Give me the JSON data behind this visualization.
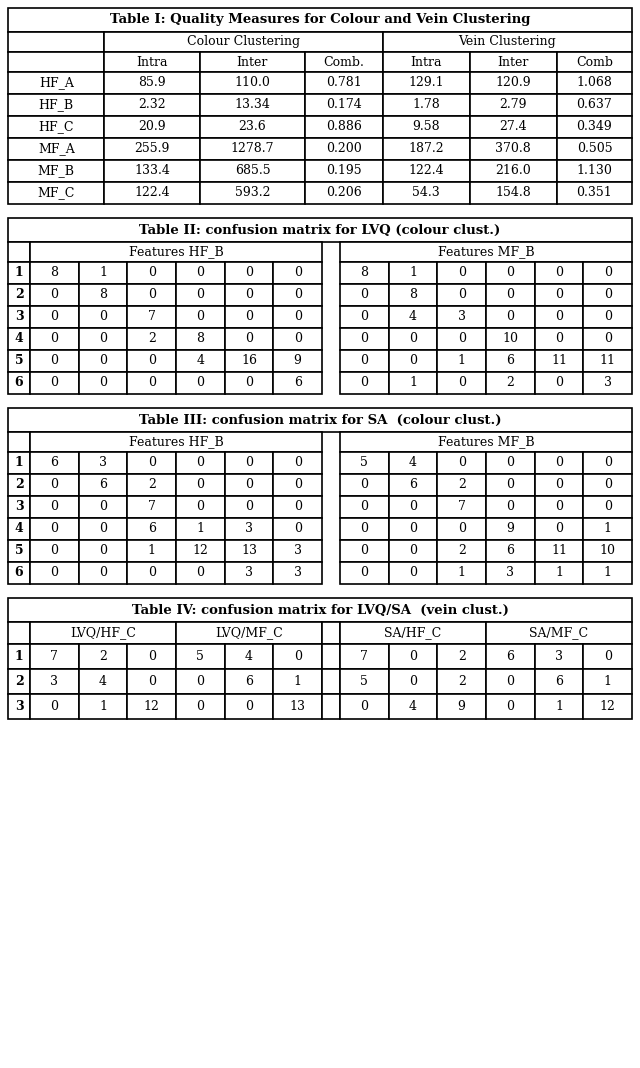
{
  "table1": {
    "title": "Table I: Quality Measures for Colour and Vein Clustering",
    "col_header1": "Colour Clustering",
    "col_header2": "Vein Clustering",
    "sub_headers": [
      "",
      "Intra",
      "Inter",
      "Comb.",
      "Intra",
      "Inter",
      "Comb"
    ],
    "rows": [
      [
        "HF_A",
        "85.9",
        "110.0",
        "0.781",
        "129.1",
        "120.9",
        "1.068"
      ],
      [
        "HF_B",
        "2.32",
        "13.34",
        "0.174",
        "1.78",
        "2.79",
        "0.637"
      ],
      [
        "HF_C",
        "20.9",
        "23.6",
        "0.886",
        "9.58",
        "27.4",
        "0.349"
      ],
      [
        "MF_A",
        "255.9",
        "1278.7",
        "0.200",
        "187.2",
        "370.8",
        "0.505"
      ],
      [
        "MF_B",
        "133.4",
        "685.5",
        "0.195",
        "122.4",
        "216.0",
        "1.130"
      ],
      [
        "MF_C",
        "122.4",
        "593.2",
        "0.206",
        "54.3",
        "154.8",
        "0.351"
      ]
    ]
  },
  "table2": {
    "title": "Table II: confusion matrix for LVQ (colour clust.)",
    "left_header": "Features HF_B",
    "right_header": "Features MF_B",
    "row_labels": [
      "1",
      "2",
      "3",
      "4",
      "5",
      "6"
    ],
    "left_rows": [
      [
        "8",
        "1",
        "0",
        "0",
        "0",
        "0"
      ],
      [
        "0",
        "8",
        "0",
        "0",
        "0",
        "0"
      ],
      [
        "0",
        "0",
        "7",
        "0",
        "0",
        "0"
      ],
      [
        "0",
        "0",
        "2",
        "8",
        "0",
        "0"
      ],
      [
        "0",
        "0",
        "0",
        "4",
        "16",
        "9"
      ],
      [
        "0",
        "0",
        "0",
        "0",
        "0",
        "6"
      ]
    ],
    "right_rows": [
      [
        "8",
        "1",
        "0",
        "0",
        "0",
        "0"
      ],
      [
        "0",
        "8",
        "0",
        "0",
        "0",
        "0"
      ],
      [
        "0",
        "4",
        "3",
        "0",
        "0",
        "0"
      ],
      [
        "0",
        "0",
        "0",
        "10",
        "0",
        "0"
      ],
      [
        "0",
        "0",
        "1",
        "6",
        "11",
        "11"
      ],
      [
        "0",
        "1",
        "0",
        "2",
        "0",
        "3"
      ]
    ]
  },
  "table3": {
    "title": "Table III: confusion matrix for SA  (colour clust.)",
    "left_header": "Features HF_B",
    "right_header": "Features MF_B",
    "row_labels": [
      "1",
      "2",
      "3",
      "4",
      "5",
      "6"
    ],
    "left_rows": [
      [
        "6",
        "3",
        "0",
        "0",
        "0",
        "0"
      ],
      [
        "0",
        "6",
        "2",
        "0",
        "0",
        "0"
      ],
      [
        "0",
        "0",
        "7",
        "0",
        "0",
        "0"
      ],
      [
        "0",
        "0",
        "6",
        "1",
        "3",
        "0"
      ],
      [
        "0",
        "0",
        "1",
        "12",
        "13",
        "3"
      ],
      [
        "0",
        "0",
        "0",
        "0",
        "3",
        "3"
      ]
    ],
    "right_rows": [
      [
        "5",
        "4",
        "0",
        "0",
        "0",
        "0"
      ],
      [
        "0",
        "6",
        "2",
        "0",
        "0",
        "0"
      ],
      [
        "0",
        "0",
        "7",
        "0",
        "0",
        "0"
      ],
      [
        "0",
        "0",
        "0",
        "9",
        "0",
        "1"
      ],
      [
        "0",
        "0",
        "2",
        "6",
        "11",
        "10"
      ],
      [
        "0",
        "0",
        "1",
        "3",
        "1",
        "1"
      ]
    ]
  },
  "table4": {
    "title": "Table IV: confusion matrix for LVQ/SA  (vein clust.)",
    "col_groups": [
      "LVQ/HF_C",
      "LVQ/MF_C",
      "SA/HF_C",
      "SA/MF_C"
    ],
    "row_labels": [
      "1",
      "2",
      "3"
    ],
    "rows": [
      [
        "7",
        "2",
        "0",
        "5",
        "4",
        "0",
        "7",
        "0",
        "2",
        "6",
        "3",
        "0"
      ],
      [
        "3",
        "4",
        "0",
        "0",
        "6",
        "1",
        "5",
        "0",
        "2",
        "0",
        "6",
        "1"
      ],
      [
        "0",
        "1",
        "12",
        "0",
        "0",
        "13",
        "0",
        "4",
        "9",
        "0",
        "1",
        "12"
      ]
    ]
  },
  "layout": {
    "fig_width": 6.4,
    "fig_height": 10.68,
    "dpi": 100,
    "lw": 1.2,
    "fontsize_title": 9.5,
    "fontsize_data": 9.0,
    "fontsize_bold": 9.0,
    "bg_color": "white",
    "border_color": "black"
  }
}
